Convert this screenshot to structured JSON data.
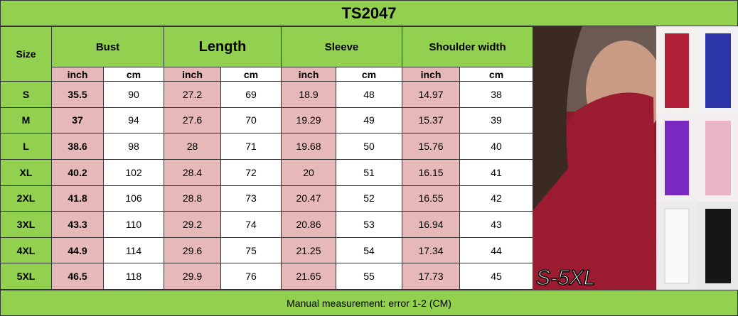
{
  "header": {
    "title": "TS2047"
  },
  "table": {
    "size_label": "Size",
    "groups": [
      "Bust",
      "Length",
      "Sleeve",
      "Shoulder width"
    ],
    "units": [
      "inch",
      "cm",
      "inch",
      "cm",
      "inch",
      "cm",
      "inch",
      "cm"
    ],
    "rows": [
      [
        "S",
        35.5,
        90,
        27.2,
        69,
        18.9,
        48,
        14.97,
        38
      ],
      [
        "M",
        37,
        94,
        27.6,
        70,
        19.29,
        49,
        15.37,
        39
      ],
      [
        "L",
        38.6,
        98,
        28,
        71,
        19.68,
        50,
        15.76,
        40
      ],
      [
        "XL",
        40.2,
        102,
        28.4,
        72,
        20,
        51,
        16.15,
        41
      ],
      [
        "2XL",
        41.8,
        106,
        28.8,
        73,
        20.47,
        52,
        16.55,
        42
      ],
      [
        "3XL",
        43.3,
        110,
        29.2,
        74,
        20.86,
        53,
        16.94,
        43
      ],
      [
        "4XL",
        44.9,
        114,
        29.6,
        75,
        21.25,
        54,
        17.34,
        44
      ],
      [
        "5XL",
        46.5,
        118,
        29.9,
        76,
        21.65,
        55,
        17.73,
        45
      ]
    ]
  },
  "image": {
    "caption": "S-5XL"
  },
  "footer": {
    "note": "Manual measurement: error 1-2 (CM)"
  }
}
